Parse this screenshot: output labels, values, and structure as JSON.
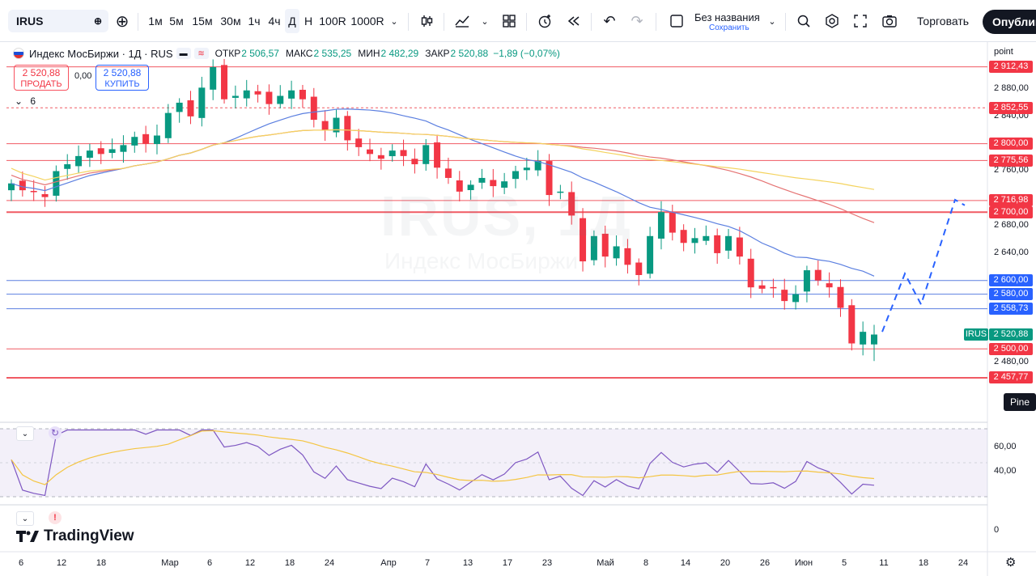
{
  "toolbar": {
    "symbol": "IRUS",
    "intervals": [
      "1м",
      "5м",
      "15м",
      "30м",
      "1ч",
      "4ч",
      "Д",
      "Н",
      "100R",
      "1000R"
    ],
    "active_interval": "Д",
    "layout_title": "Без названия",
    "layout_subtitle": "Сохранить",
    "trade_label": "Торговать",
    "publish_label": "Опублик"
  },
  "legend": {
    "title": "Индекс МосБиржи · 1Д · RUS",
    "open_label": "ОТКР",
    "open": "2 506,57",
    "high_label": "МАКС",
    "high": "2 535,25",
    "low_label": "МИН",
    "low": "2 482,29",
    "close_label": "ЗАКР",
    "close": "2 520,88",
    "change": "−1,89 (−0,07%)"
  },
  "trade": {
    "sell_price": "2 520,88",
    "sell_label": "ПРОДАТЬ",
    "spread": "0,00",
    "buy_price": "2 520,88",
    "buy_label": "КУПИТЬ",
    "collapse_count": "6"
  },
  "watermark": {
    "symbol": "IRUS, 1Д",
    "name": "Индекс МосБиржи"
  },
  "price_axis": {
    "unit": "point",
    "ticks": [
      "2 880,00",
      "2 840,00",
      "2 760,00",
      "2 680,00",
      "2 640,00",
      "2 480,00"
    ],
    "tags": [
      {
        "text": "2 912,43",
        "color": "red"
      },
      {
        "text": "2 852,55",
        "color": "red"
      },
      {
        "text": "2 800,00",
        "color": "red"
      },
      {
        "text": "2 775,56",
        "color": "red"
      },
      {
        "text": "2 716,98",
        "color": "red"
      },
      {
        "text": "2 700,00",
        "color": "red"
      },
      {
        "text": "2 600,00",
        "color": "blue"
      },
      {
        "text": "2 580,00",
        "color": "blue"
      },
      {
        "text": "2 558,73",
        "color": "blue"
      },
      {
        "text": "2 520,88",
        "color": "green"
      },
      {
        "text": "2 500,00",
        "color": "red"
      },
      {
        "text": "2 457,77",
        "color": "red"
      }
    ],
    "symbol_tag": "IRUS",
    "pine": "Pine"
  },
  "rsi_axis": {
    "ticks": [
      "60,00",
      "40,00"
    ],
    "sub_tick": "0"
  },
  "time_axis": [
    "6",
    "12",
    "18",
    "Мар",
    "6",
    "12",
    "18",
    "24",
    "Апр",
    "7",
    "13",
    "17",
    "23",
    "Май",
    "8",
    "14",
    "20",
    "26",
    "Июн",
    "5",
    "11",
    "18",
    "24"
  ],
  "logo": "TradingView",
  "colors": {
    "up": "#089981",
    "down": "#f23645",
    "accent": "#2962ff"
  },
  "chart_data": {
    "type": "candlestick",
    "symbol": "IRUS",
    "interval": "1Д",
    "ohlc_last": {
      "open": 2506.57,
      "high": 2535.25,
      "low": 2482.29,
      "close": 2520.88
    },
    "closes": [
      2742,
      2732,
      2730,
      2722,
      2760,
      2770,
      2782,
      2790,
      2785,
      2792,
      2798,
      2810,
      2800,
      2812,
      2845,
      2860,
      2840,
      2882,
      2912,
      2865,
      2870,
      2878,
      2872,
      2858,
      2870,
      2878,
      2865,
      2835,
      2820,
      2838,
      2805,
      2795,
      2785,
      2778,
      2790,
      2782,
      2770,
      2798,
      2765,
      2750,
      2730,
      2740,
      2750,
      2738,
      2745,
      2760,
      2765,
      2775,
      2725,
      2730,
      2695,
      2628,
      2665,
      2635,
      2650,
      2623,
      2608,
      2665,
      2700,
      2670,
      2655,
      2662,
      2665,
      2640,
      2665,
      2635,
      2590,
      2588,
      2590,
      2570,
      2580,
      2615,
      2600,
      2590,
      2560,
      2508,
      2525,
      2521
    ],
    "horizontal_levels": [
      2912.43,
      2852.55,
      2800.0,
      2775.56,
      2716.98,
      2700.0,
      2600.0,
      2580.0,
      2558.73,
      2500.0,
      2457.77
    ],
    "ylim": [
      2440,
      2925
    ],
    "rsi_ylim": [
      20,
      75
    ]
  }
}
